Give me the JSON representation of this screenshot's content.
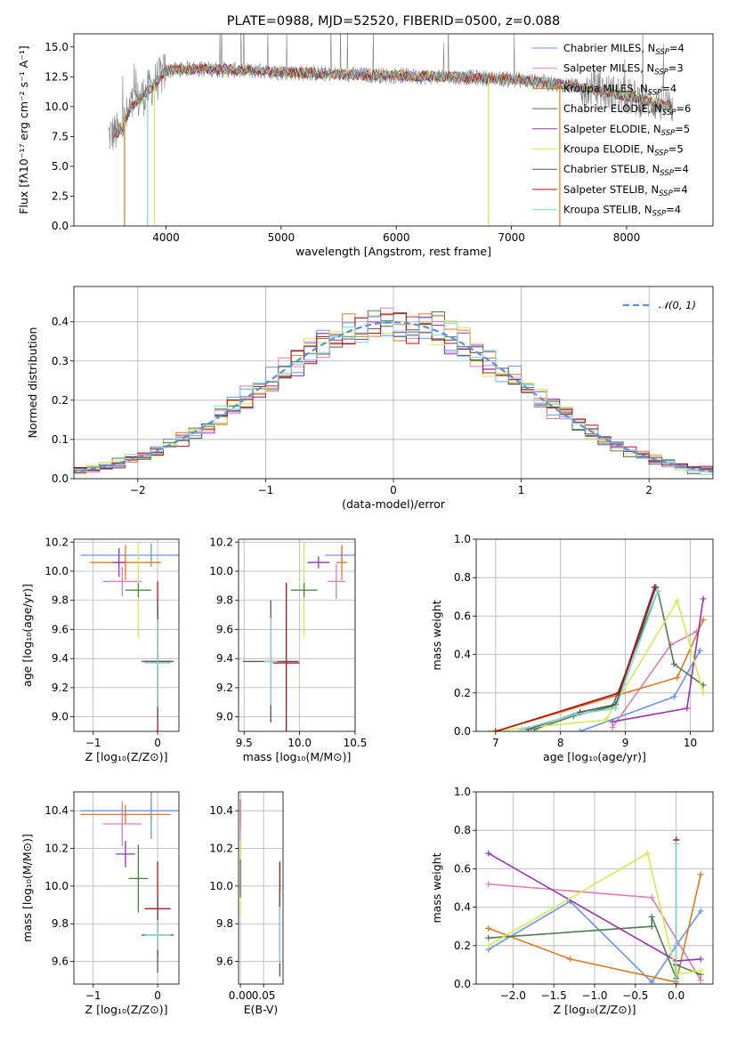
{
  "figure_title": "PLATE=0988, MJD=52520, FIBERID=0500, z=0.088",
  "models": [
    {
      "name": "Chabrier MILES",
      "nssp": "4",
      "color": "#6495ED"
    },
    {
      "name": "Salpeter MILES",
      "nssp": "3",
      "color": "#E07BB8"
    },
    {
      "name": "Kroupa MILES",
      "nssp": "4",
      "color": "#E6761B"
    },
    {
      "name": "Chabrier ELODIE",
      "nssp": "6",
      "color": "#4E7E4E"
    },
    {
      "name": "Salpeter ELODIE",
      "nssp": "5",
      "color": "#9B30B4"
    },
    {
      "name": "Kroupa ELODIE",
      "nssp": "5",
      "color": "#D4EC4E"
    },
    {
      "name": "Chabrier STELIB",
      "nssp": "4",
      "color": "#555555"
    },
    {
      "name": "Salpeter STELIB",
      "nssp": "4",
      "color": "#B01010"
    },
    {
      "name": "Kroupa STELIB",
      "nssp": "4",
      "color": "#7FD8D8"
    }
  ],
  "chart_data": [
    {
      "id": "spectrum",
      "type": "line",
      "xlabel": "wavelength [Angstrom, rest frame]",
      "ylabel": "Flux [fλ10⁻¹⁷ erg cm⁻² s⁻¹ A⁻¹]",
      "xlim": [
        3200,
        8750
      ],
      "ylim": [
        0,
        16.1
      ],
      "xticks": [
        4000,
        5000,
        6000,
        7000,
        8000
      ],
      "yticks": [
        0.0,
        2.5,
        5.0,
        7.5,
        10.0,
        12.5,
        15.0
      ],
      "grid": false,
      "legend": "upper right",
      "data_range": [
        3500,
        8400
      ],
      "continuum": [
        [
          3500,
          7.6
        ],
        [
          3600,
          7.9
        ],
        [
          3700,
          10.0
        ],
        [
          3850,
          11.4
        ],
        [
          4000,
          13.0
        ],
        [
          4200,
          13.2
        ],
        [
          4500,
          13.1
        ],
        [
          5000,
          12.9
        ],
        [
          5500,
          12.7
        ],
        [
          6000,
          12.6
        ],
        [
          6500,
          12.5
        ],
        [
          7000,
          12.3
        ],
        [
          7500,
          11.8
        ],
        [
          8000,
          10.9
        ],
        [
          8400,
          10.0
        ]
      ]
    },
    {
      "id": "residuals",
      "type": "histogram",
      "xlabel": "(data-model)/error",
      "ylabel": "Normed distribution",
      "xlim": [
        -2.5,
        2.5
      ],
      "ylim": [
        0,
        0.49
      ],
      "xticks": [
        -2,
        -1,
        0,
        1,
        2
      ],
      "yticks": [
        0.0,
        0.1,
        0.2,
        0.3,
        0.4
      ],
      "grid": true,
      "bin_width": 0.1,
      "reference": {
        "name": "𝒩(0, 1)",
        "mean": 0,
        "sigma": 1,
        "color": "#5B8FD6"
      },
      "legend": "upper right"
    },
    {
      "id": "age_vs_Z",
      "type": "errorbar",
      "xlabel": "Z [log₁₀(Z/Z⊙)]",
      "ylabel": "age  [log₁₀(age/yr)]",
      "xlim": [
        -1.3,
        0.33
      ],
      "ylim": [
        8.9,
        10.22
      ],
      "xticks": [
        -1,
        0
      ],
      "yticks": [
        9.0,
        9.2,
        9.4,
        9.6,
        9.8,
        10.0,
        10.2
      ],
      "grid": true,
      "points": [
        {
          "model": 0,
          "x": -0.1,
          "y": 10.11,
          "xerr": 1.1,
          "yerr": 0.08
        },
        {
          "model": 2,
          "x": -0.5,
          "y": 10.06,
          "xerr": 0.55,
          "yerr": 0.12
        },
        {
          "model": 1,
          "x": -0.55,
          "y": 9.93,
          "xerr": 0.3,
          "yerr": 0.1
        },
        {
          "model": 4,
          "x": -0.6,
          "y": 10.06,
          "xerr": 0.1,
          "yerr": 0.1
        },
        {
          "model": 5,
          "x": -0.3,
          "y": 9.87,
          "xerr": 0.2,
          "yerr": 0.33
        },
        {
          "model": 3,
          "x": -0.3,
          "y": 9.87,
          "xerr": 0.2,
          "yerr": 0.05
        },
        {
          "model": 7,
          "x": 0.0,
          "y": 9.38,
          "xerr": 0.2,
          "yerr": 0.55
        },
        {
          "model": 6,
          "x": 0.0,
          "y": 9.38,
          "xerr": 0.25,
          "yerr": 0.42
        },
        {
          "model": 8,
          "x": 0.0,
          "y": 9.37,
          "xerr": 0.2,
          "yerr": 0.3
        }
      ]
    },
    {
      "id": "age_vs_mass",
      "type": "errorbar",
      "xlabel": "mass [log₁₀(M/M⊙)]",
      "ylabel": "",
      "xlim": [
        9.45,
        10.5
      ],
      "ylim": [
        8.9,
        10.22
      ],
      "xticks": [
        9.5,
        10.0,
        10.5
      ],
      "yticks": [
        9.0,
        9.2,
        9.4,
        9.6,
        9.8,
        10.0,
        10.2
      ],
      "grid": true,
      "points": [
        {
          "model": 0,
          "x": 10.38,
          "y": 10.11,
          "xerr": 0.15,
          "yerr": 0.05
        },
        {
          "model": 2,
          "x": 10.38,
          "y": 10.06,
          "xerr": 0.05,
          "yerr": 0.12
        },
        {
          "model": 1,
          "x": 10.33,
          "y": 9.93,
          "xerr": 0.08,
          "yerr": 0.12
        },
        {
          "model": 4,
          "x": 10.17,
          "y": 10.06,
          "xerr": 0.1,
          "yerr": 0.04
        },
        {
          "model": 5,
          "x": 10.04,
          "y": 9.87,
          "xerr": 0.12,
          "yerr": 0.33
        },
        {
          "model": 3,
          "x": 10.04,
          "y": 9.87,
          "xerr": 0.12,
          "yerr": 0.05
        },
        {
          "model": 7,
          "x": 9.88,
          "y": 9.37,
          "xerr": 0.12,
          "yerr": 0.55
        },
        {
          "model": 6,
          "x": 9.74,
          "y": 9.38,
          "xerr": 0.25,
          "yerr": 0.42
        },
        {
          "model": 8,
          "x": 9.74,
          "y": 9.38,
          "xerr": 0.06,
          "yerr": 0.3
        }
      ]
    },
    {
      "id": "weight_vs_age",
      "type": "line",
      "xlabel": "age  [log₁₀(age/yr)]",
      "ylabel": "mass weight",
      "xlim": [
        6.7,
        10.35
      ],
      "ylim": [
        0,
        1
      ],
      "xticks": [
        7,
        8,
        9,
        10
      ],
      "yticks": [
        0.0,
        0.2,
        0.4,
        0.6,
        0.8,
        1.0
      ],
      "grid": true,
      "series": [
        {
          "model": 0,
          "x": [
            8.3,
            9.75,
            10.15
          ],
          "y": [
            0.0,
            0.18,
            0.42
          ]
        },
        {
          "model": 1,
          "x": [
            8.8,
            9.7,
            10.1
          ],
          "y": [
            0.02,
            0.45,
            0.52
          ]
        },
        {
          "model": 2,
          "x": [
            7.0,
            9.8,
            10.2
          ],
          "y": [
            0.0,
            0.28,
            0.58
          ]
        },
        {
          "model": 3,
          "x": [
            7.6,
            8.2,
            8.8,
            9.5,
            9.75,
            10.2
          ],
          "y": [
            0.01,
            0.08,
            0.13,
            0.73,
            0.35,
            0.24
          ]
        },
        {
          "model": 4,
          "x": [
            8.8,
            9.95,
            10.2
          ],
          "y": [
            0.05,
            0.12,
            0.69
          ]
        },
        {
          "model": 5,
          "x": [
            6.9,
            8.7,
            9.8,
            10.2
          ],
          "y": [
            0.0,
            0.06,
            0.68,
            0.2
          ]
        },
        {
          "model": 6,
          "x": [
            7.5,
            8.3,
            8.85,
            9.47
          ],
          "y": [
            0.01,
            0.1,
            0.14,
            0.75
          ]
        },
        {
          "model": 7,
          "x": [
            7.0,
            8.9,
            9.45
          ],
          "y": [
            0.0,
            0.2,
            0.75
          ]
        },
        {
          "model": 8,
          "x": [
            7.4,
            8.25,
            8.85,
            9.5
          ],
          "y": [
            0.01,
            0.09,
            0.12,
            0.73
          ]
        }
      ]
    },
    {
      "id": "mass_vs_Z",
      "type": "errorbar",
      "xlabel": "Z [log₁₀(Z/Z⊙)]",
      "ylabel": "mass [log₁₀(M/M⊙)]",
      "xlim": [
        -1.3,
        0.33
      ],
      "ylim": [
        9.48,
        10.5
      ],
      "xticks": [
        -1,
        0
      ],
      "yticks": [
        9.6,
        9.8,
        10.0,
        10.2,
        10.4
      ],
      "grid": true,
      "points": [
        {
          "model": 0,
          "x": -0.1,
          "y": 10.4,
          "xerr": 1.1,
          "yerr": 0.15
        },
        {
          "model": 2,
          "x": -0.5,
          "y": 10.38,
          "xerr": 0.7,
          "yerr": 0.05
        },
        {
          "model": 1,
          "x": -0.55,
          "y": 10.33,
          "xerr": 0.3,
          "yerr": 0.12
        },
        {
          "model": 4,
          "x": -0.5,
          "y": 10.17,
          "xerr": 0.15,
          "yerr": 0.07
        },
        {
          "model": 5,
          "x": -0.3,
          "y": 10.04,
          "xerr": 0.15,
          "yerr": 0.12
        },
        {
          "model": 3,
          "x": -0.3,
          "y": 10.04,
          "xerr": 0.15,
          "yerr": 0.18
        },
        {
          "model": 7,
          "x": 0.0,
          "y": 9.88,
          "xerr": 0.2,
          "yerr": 0.25
        },
        {
          "model": 6,
          "x": 0.0,
          "y": 9.74,
          "xerr": 0.25,
          "yerr": 0.2
        },
        {
          "model": 8,
          "x": 0.0,
          "y": 9.74,
          "xerr": 0.2,
          "yerr": 0.08
        }
      ]
    },
    {
      "id": "mass_vs_ebv",
      "type": "errorbar",
      "xlabel": "E(B-V)",
      "ylabel": "",
      "xlim": [
        -0.004,
        0.092
      ],
      "ylim": [
        9.48,
        10.5
      ],
      "xticks": [
        0.0,
        0.05
      ],
      "yticks": [
        9.6,
        9.8,
        10.0,
        10.2,
        10.4
      ],
      "grid": true,
      "points": [
        {
          "model": 0,
          "x": 0.0,
          "y": 10.4,
          "xerr": 0,
          "yerr": 0.06
        },
        {
          "model": 2,
          "x": 0.0,
          "y": 10.38,
          "xerr": 0,
          "yerr": 0.08
        },
        {
          "model": 1,
          "x": 0.0,
          "y": 10.33,
          "xerr": 0,
          "yerr": 0.12
        },
        {
          "model": 4,
          "x": 0.0,
          "y": 10.17,
          "xerr": 0,
          "yerr": 0.05
        },
        {
          "model": 5,
          "x": 0.0,
          "y": 10.04,
          "xerr": 0,
          "yerr": 0.2
        },
        {
          "model": 3,
          "x": 0.0,
          "y": 10.04,
          "xerr": 0,
          "yerr": 0.1
        },
        {
          "model": 7,
          "x": 0.085,
          "y": 9.88,
          "xerr": 0,
          "yerr": 0.25
        },
        {
          "model": 6,
          "x": 0.085,
          "y": 9.74,
          "xerr": 0,
          "yerr": 0.22
        },
        {
          "model": 8,
          "x": 0.085,
          "y": 9.74,
          "xerr": 0,
          "yerr": 0.15
        }
      ]
    },
    {
      "id": "weight_vs_Z",
      "type": "line",
      "xlabel": "Z [log₁₀(Z/Z⊙)]",
      "ylabel": "mass weight",
      "xlim": [
        -2.45,
        0.45
      ],
      "ylim": [
        0,
        1
      ],
      "xticks": [
        -2.0,
        -1.5,
        -1.0,
        -0.5,
        0.0
      ],
      "yticks": [
        0.0,
        0.2,
        0.4,
        0.6,
        0.8,
        1.0
      ],
      "grid": true,
      "series": [
        {
          "model": 0,
          "x": [
            -2.3,
            -1.3,
            -0.3,
            0.0,
            0.3
          ],
          "y": [
            0.18,
            0.43,
            0.01,
            0.2,
            0.38
          ]
        },
        {
          "model": 1,
          "x": [
            -2.3,
            -0.3,
            0.3
          ],
          "y": [
            0.52,
            0.45,
            0.02
          ]
        },
        {
          "model": 2,
          "x": [
            -2.3,
            -1.3,
            0.0,
            0.3
          ],
          "y": [
            0.29,
            0.13,
            0.01,
            0.57
          ]
        },
        {
          "model": 3,
          "x": [
            -2.3,
            -0.3,
            -0.3,
            0.0,
            0.0,
            0.3
          ],
          "y": [
            0.24,
            0.3,
            0.35,
            0.03,
            0.1,
            0.05
          ]
        },
        {
          "model": 4,
          "x": [
            -2.3,
            0.0,
            0.3
          ],
          "y": [
            0.68,
            0.12,
            0.13
          ]
        },
        {
          "model": 5,
          "x": [
            -2.3,
            -0.35,
            0.0,
            0.3
          ],
          "y": [
            0.2,
            0.68,
            0.05,
            0.07
          ]
        },
        {
          "model": 6,
          "x": [
            0.0,
            0.0
          ],
          "y": [
            0.75,
            0.1
          ]
        },
        {
          "model": 7,
          "x": [
            0.0,
            0.0
          ],
          "y": [
            0.75,
            0.0
          ]
        },
        {
          "model": 8,
          "x": [
            0.0,
            0.0
          ],
          "y": [
            0.73,
            0.02
          ]
        }
      ]
    }
  ]
}
